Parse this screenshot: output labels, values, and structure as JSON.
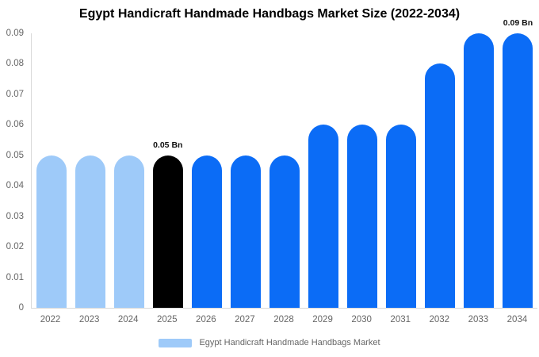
{
  "chart": {
    "title": "Egypt Handicraft Handmade Handbags Market Size (2022-2034)",
    "legend_label": "Egypt Handicraft Handmade Handbags Market"
  },
  "colors": {
    "bar_historical": "#9ECAF9",
    "bar_current": "#000000",
    "bar_forecast": "#0B6CF6",
    "axis_line": "#d9d9d9",
    "axis_text": "#666666",
    "title_text": "#000000",
    "value_label_text": "#111111"
  },
  "chart_data": {
    "type": "bar",
    "title": "Egypt Handicraft Handmade Handbags Market Size (2022-2034)",
    "categories": [
      "2022",
      "2023",
      "2024",
      "2025",
      "2026",
      "2027",
      "2028",
      "2029",
      "2030",
      "2031",
      "2032",
      "2033",
      "2034"
    ],
    "values": [
      0.05,
      0.05,
      0.05,
      0.05,
      0.05,
      0.05,
      0.05,
      0.06,
      0.06,
      0.06,
      0.08,
      0.09,
      0.09
    ],
    "bar_roles": [
      "historical",
      "historical",
      "historical",
      "current",
      "forecast",
      "forecast",
      "forecast",
      "forecast",
      "forecast",
      "forecast",
      "forecast",
      "forecast",
      "forecast"
    ],
    "point_labels": [
      null,
      null,
      null,
      "0.05 Bn",
      null,
      null,
      null,
      null,
      null,
      null,
      null,
      null,
      "0.09 Bn"
    ],
    "unit": "Bn",
    "xlabel": "",
    "ylabel": "",
    "ylim": [
      0,
      0.09
    ],
    "yticks": [
      0,
      0.01,
      0.02,
      0.03,
      0.04,
      0.05,
      0.06,
      0.07,
      0.08,
      0.09
    ],
    "ytick_labels": [
      "0",
      "0.01",
      "0.02",
      "0.03",
      "0.04",
      "0.05",
      "0.06",
      "0.07",
      "0.08",
      "0.09"
    ],
    "grid": false,
    "legend": [
      "Egypt Handicraft Handmade Handbags Market"
    ],
    "legend_position": "bottom"
  }
}
